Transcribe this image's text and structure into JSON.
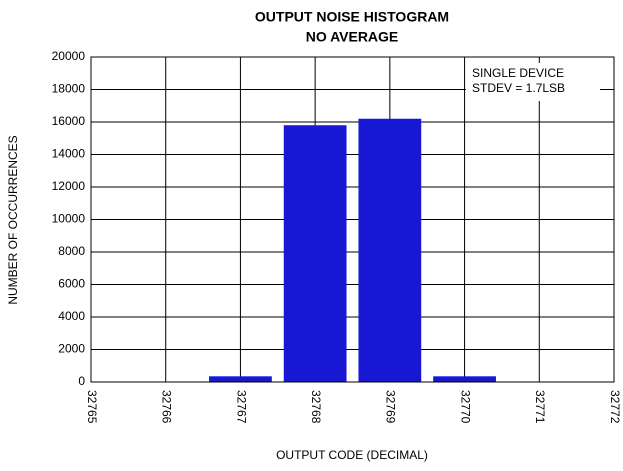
{
  "chart_data": {
    "type": "bar",
    "title": [
      "OUTPUT NOISE HISTOGRAM",
      "NO AVERAGE"
    ],
    "xlabel": "OUTPUT CODE (DECIMAL)",
    "ylabel": "NUMBER OF OCCURRENCES",
    "annotation": [
      "SINGLE DEVICE",
      "STDEV = 1.7LSB"
    ],
    "x": [
      32767,
      32768,
      32769,
      32770
    ],
    "values": [
      350,
      15800,
      16200,
      350
    ],
    "color": "#1717d4",
    "xlim": [
      32765,
      32772
    ],
    "xticks": [
      32765,
      32766,
      32767,
      32768,
      32769,
      32770,
      32771,
      32772
    ],
    "ylim": [
      0,
      20000
    ],
    "yticks": [
      0,
      2000,
      4000,
      6000,
      8000,
      10000,
      12000,
      14000,
      16000,
      18000,
      20000
    ],
    "grid": true
  }
}
